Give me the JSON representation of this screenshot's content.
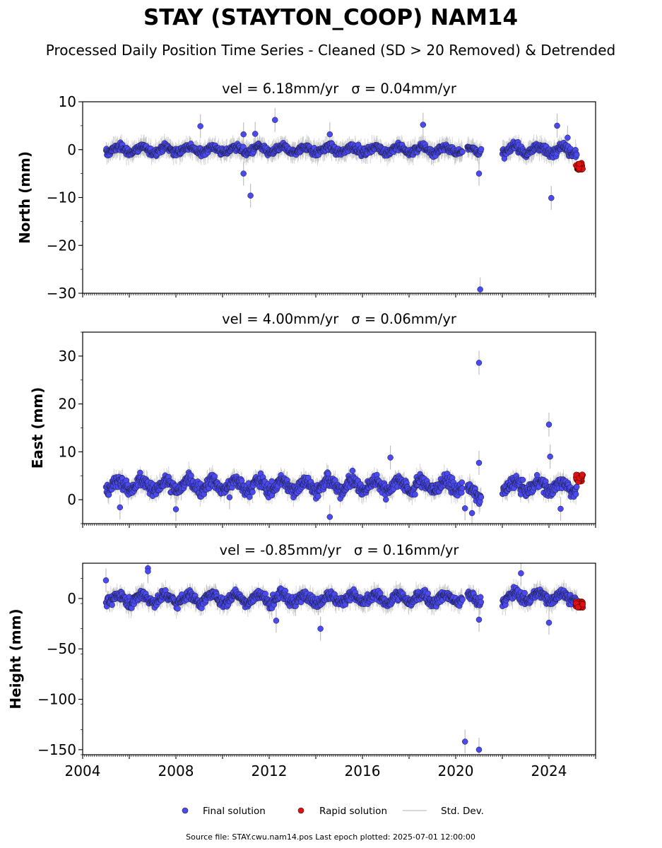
{
  "figure": {
    "title": "STAY (STAYTON_COOP) NAM14",
    "subtitle": "Processed Daily Position Time Series - Cleaned (SD > 20 Removed) & Detrended",
    "source_note": "Source file: STAY.cwu.nam14.pos  Last epoch plotted: 2025-07-01 12:00:00"
  },
  "legend": {
    "final_label": "Final solution",
    "rapid_label": "Rapid solution",
    "std_label": "Std. Dev."
  },
  "colors": {
    "final": "#4a4af0",
    "rapid": "#e01010",
    "std": "#b0b0b0",
    "text": "#000000"
  },
  "chart_data": [
    {
      "type": "scatter",
      "vel_label": "vel = 6.18mm/yr",
      "sigma_label": "σ = 0.04mm/yr",
      "ylabel": "North (mm)",
      "xlim": [
        2004,
        2026
      ],
      "ylim": [
        -30,
        10
      ],
      "yticks": [
        -30,
        -20,
        -10,
        0,
        10
      ],
      "ytick_labels": [
        "−30",
        "−20",
        "−10",
        "0",
        "10"
      ],
      "final_segments": [
        {
          "x0": 2005.0,
          "x1": 2020.3,
          "center": 0,
          "amplitude": 1.2
        },
        {
          "x0": 2020.5,
          "x1": 2021.1,
          "center": 0,
          "amplitude": 1.0
        },
        {
          "x0": 2022.0,
          "x1": 2025.2,
          "center": 0,
          "amplitude": 1.5
        }
      ],
      "outliers": [
        {
          "x": 2009.05,
          "y": 4.9
        },
        {
          "x": 2010.9,
          "y": 3.2
        },
        {
          "x": 2010.9,
          "y": -5.0
        },
        {
          "x": 2011.2,
          "y": -9.6
        },
        {
          "x": 2011.4,
          "y": 3.3
        },
        {
          "x": 2012.25,
          "y": 6.2
        },
        {
          "x": 2014.6,
          "y": 3.2
        },
        {
          "x": 2018.6,
          "y": 5.2
        },
        {
          "x": 2021.0,
          "y": -5.0
        },
        {
          "x": 2021.05,
          "y": -29.2
        },
        {
          "x": 2024.1,
          "y": -10.1
        },
        {
          "x": 2024.35,
          "y": 5.0
        },
        {
          "x": 2024.8,
          "y": 2.5
        }
      ],
      "rapid": {
        "x0": 2025.15,
        "x1": 2025.45,
        "y": -3.5,
        "spread": 1.5
      }
    },
    {
      "type": "scatter",
      "vel_label": "vel = 4.00mm/yr",
      "sigma_label": "σ = 0.06mm/yr",
      "ylabel": "East (mm)",
      "xlim": [
        2004,
        2026
      ],
      "ylim": [
        -5,
        35
      ],
      "yticks": [
        0,
        10,
        20,
        30
      ],
      "ytick_labels": [
        "0",
        "10",
        "20",
        "30"
      ],
      "final_segments": [
        {
          "x0": 2005.0,
          "x1": 2020.3,
          "center": 3,
          "amplitude": 2.2
        },
        {
          "x0": 2020.5,
          "x1": 2021.1,
          "center": 1.5,
          "amplitude": 2.0
        },
        {
          "x0": 2022.0,
          "x1": 2025.2,
          "center": 2.8,
          "amplitude": 2.0
        }
      ],
      "outliers": [
        {
          "x": 2005.6,
          "y": -1.6
        },
        {
          "x": 2008.0,
          "y": -2.0
        },
        {
          "x": 2010.3,
          "y": 0.5
        },
        {
          "x": 2014.6,
          "y": -3.6
        },
        {
          "x": 2017.2,
          "y": 8.8
        },
        {
          "x": 2020.4,
          "y": -1.8
        },
        {
          "x": 2020.7,
          "y": -2.8
        },
        {
          "x": 2021.0,
          "y": 28.6
        },
        {
          "x": 2021.0,
          "y": 7.7
        },
        {
          "x": 2024.0,
          "y": 15.7
        },
        {
          "x": 2024.05,
          "y": 9.0
        },
        {
          "x": 2024.5,
          "y": -1.9
        }
      ],
      "rapid": {
        "x0": 2025.15,
        "x1": 2025.45,
        "y": 4.5,
        "spread": 1.5
      }
    },
    {
      "type": "scatter",
      "vel_label": "vel = -0.85mm/yr",
      "sigma_label": "σ = 0.16mm/yr",
      "ylabel": "Height (mm)",
      "xlim": [
        2004,
        2026
      ],
      "ylim": [
        -155,
        35
      ],
      "yticks": [
        -150,
        -100,
        -50,
        0
      ],
      "ytick_labels": [
        "−150",
        "−100",
        "−50",
        "0"
      ],
      "xticks": [
        2004,
        2008,
        2012,
        2016,
        2020,
        2024
      ],
      "xtick_labels": [
        "2004",
        "2008",
        "2012",
        "2016",
        "2020",
        "2024"
      ],
      "final_segments": [
        {
          "x0": 2005.0,
          "x1": 2020.3,
          "center": 0,
          "amplitude": 8
        },
        {
          "x0": 2020.5,
          "x1": 2021.1,
          "center": 0,
          "amplitude": 8
        },
        {
          "x0": 2022.0,
          "x1": 2025.2,
          "center": 2,
          "amplitude": 8
        }
      ],
      "outliers": [
        {
          "x": 2005.0,
          "y": 18
        },
        {
          "x": 2006.8,
          "y": 30
        },
        {
          "x": 2006.8,
          "y": 27
        },
        {
          "x": 2012.3,
          "y": -22
        },
        {
          "x": 2014.2,
          "y": -30
        },
        {
          "x": 2020.4,
          "y": -142
        },
        {
          "x": 2021.0,
          "y": -150
        },
        {
          "x": 2021.0,
          "y": -21
        },
        {
          "x": 2024.0,
          "y": -24
        },
        {
          "x": 2022.8,
          "y": 25
        }
      ],
      "rapid": {
        "x0": 2025.15,
        "x1": 2025.45,
        "y": -6,
        "spread": 6
      }
    }
  ]
}
